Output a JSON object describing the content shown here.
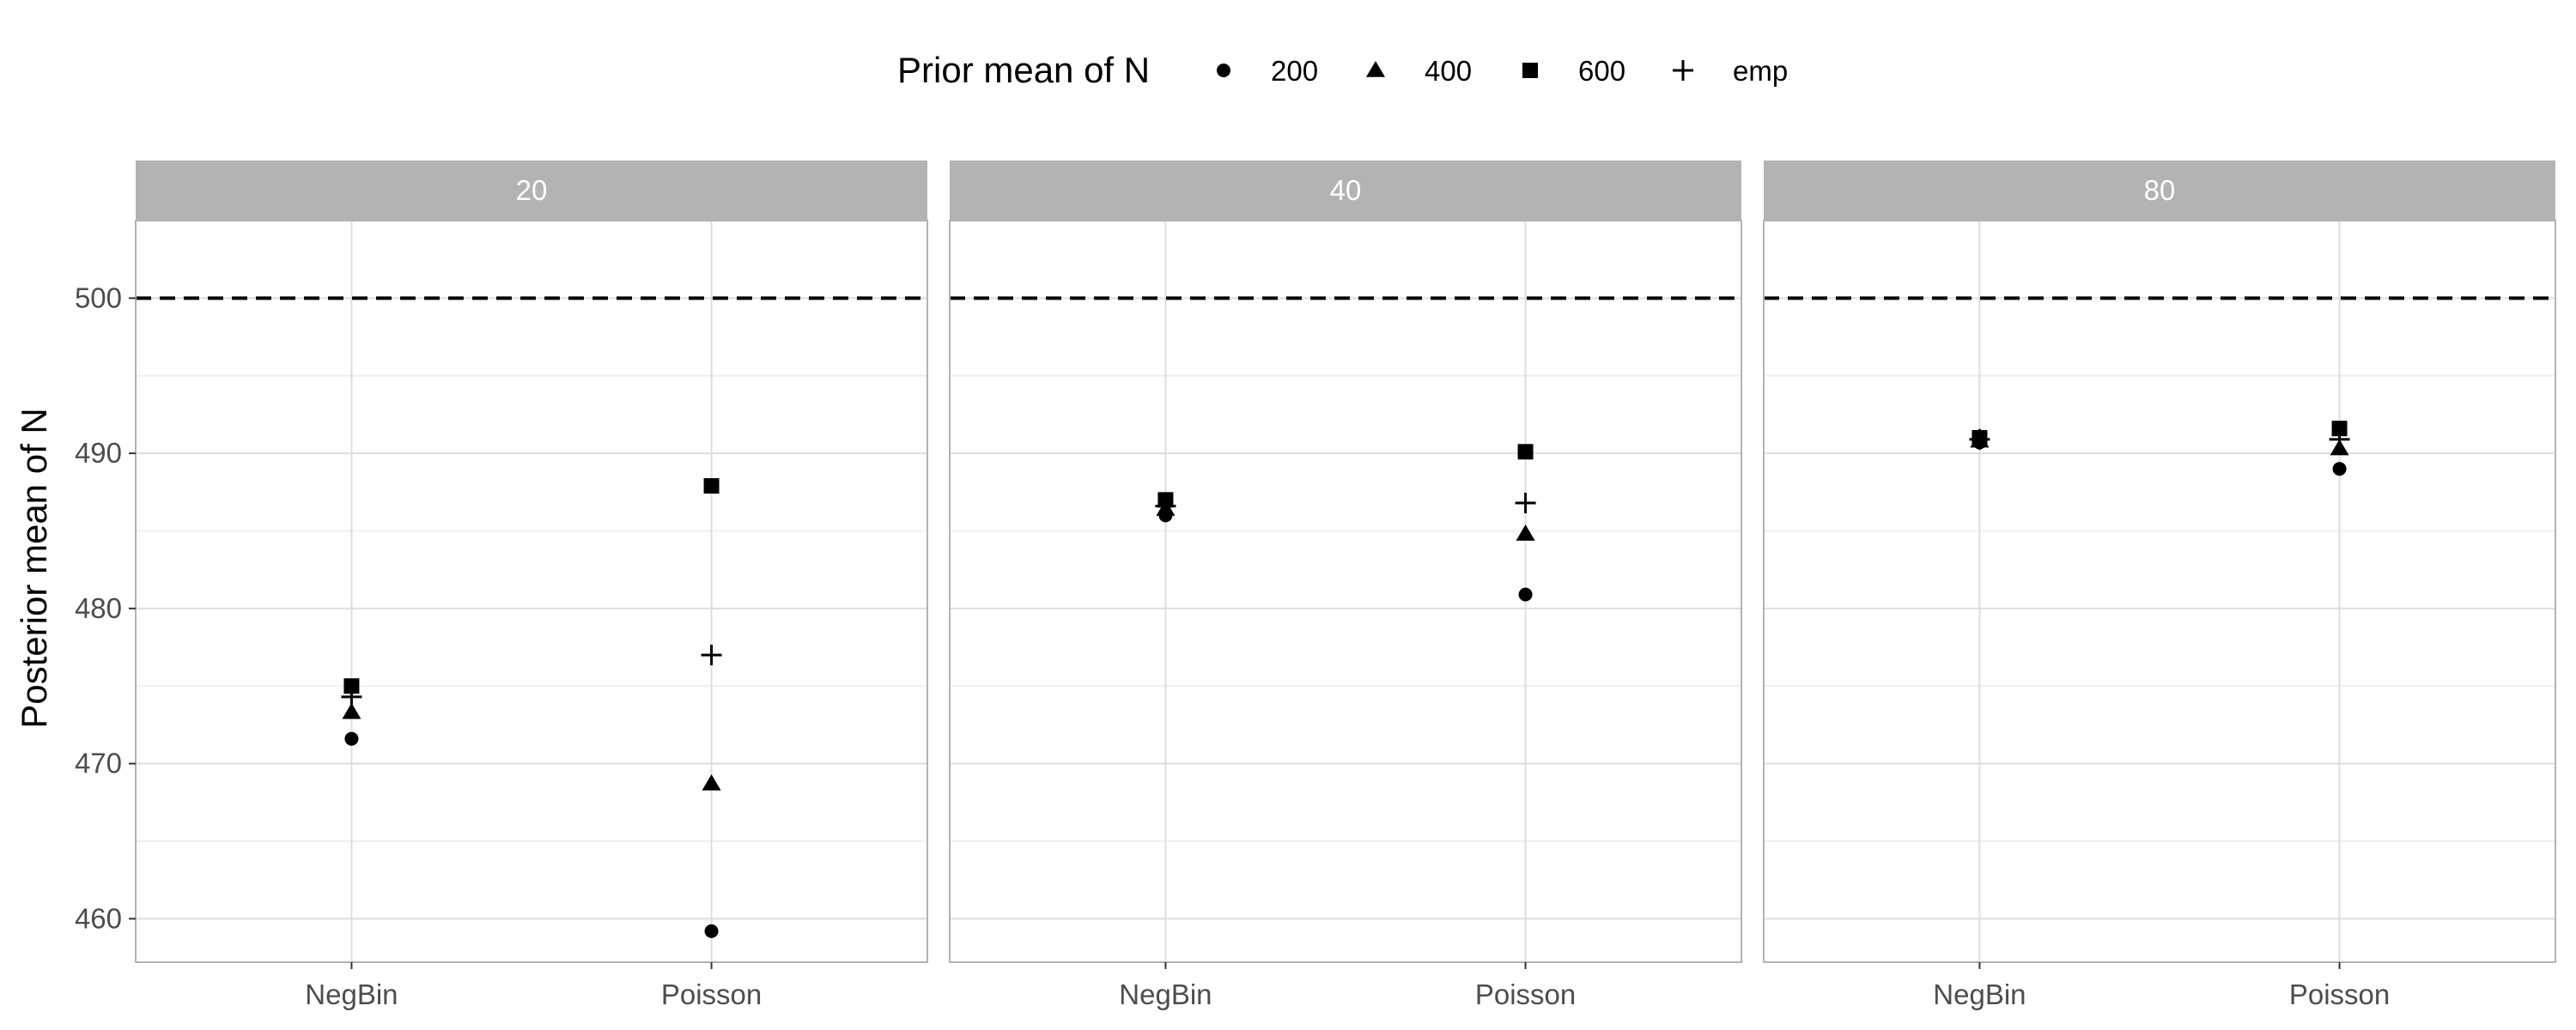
{
  "chart_data": {
    "type": "scatter",
    "ylabel": "Posterior mean of N",
    "ylim": [
      457.2,
      505.0
    ],
    "y_ticks": [
      460,
      470,
      480,
      490,
      500
    ],
    "x_categories": [
      "NegBin",
      "Poisson"
    ],
    "reference_line": {
      "y": 500,
      "style": "dashed"
    },
    "legend": {
      "title": "Prior mean of N",
      "position": "top",
      "entries": [
        {
          "label": "200",
          "shape": "circle"
        },
        {
          "label": "400",
          "shape": "triangle"
        },
        {
          "label": "600",
          "shape": "square"
        },
        {
          "label": "emp",
          "shape": "plus"
        }
      ]
    },
    "panels": [
      {
        "label": "20",
        "points": [
          {
            "x": "NegBin",
            "series": "200",
            "y": 471.6
          },
          {
            "x": "NegBin",
            "series": "400",
            "y": 473.3
          },
          {
            "x": "NegBin",
            "series": "600",
            "y": 475.0
          },
          {
            "x": "NegBin",
            "series": "emp",
            "y": 474.3
          },
          {
            "x": "Poisson",
            "series": "200",
            "y": 459.2
          },
          {
            "x": "Poisson",
            "series": "400",
            "y": 468.7
          },
          {
            "x": "Poisson",
            "series": "600",
            "y": 487.9
          },
          {
            "x": "Poisson",
            "series": "emp",
            "y": 477.0
          }
        ]
      },
      {
        "label": "40",
        "points": [
          {
            "x": "NegBin",
            "series": "200",
            "y": 486.0
          },
          {
            "x": "NegBin",
            "series": "400",
            "y": 486.4
          },
          {
            "x": "NegBin",
            "series": "600",
            "y": 487.0
          },
          {
            "x": "NegBin",
            "series": "emp",
            "y": 486.6
          },
          {
            "x": "Poisson",
            "series": "200",
            "y": 480.9
          },
          {
            "x": "Poisson",
            "series": "400",
            "y": 484.8
          },
          {
            "x": "Poisson",
            "series": "600",
            "y": 490.1
          },
          {
            "x": "Poisson",
            "series": "emp",
            "y": 486.8
          }
        ]
      },
      {
        "label": "80",
        "points": [
          {
            "x": "NegBin",
            "series": "200",
            "y": 490.7
          },
          {
            "x": "NegBin",
            "series": "400",
            "y": 490.8
          },
          {
            "x": "NegBin",
            "series": "600",
            "y": 491.0
          },
          {
            "x": "NegBin",
            "series": "emp",
            "y": 490.9
          },
          {
            "x": "Poisson",
            "series": "200",
            "y": 489.0
          },
          {
            "x": "Poisson",
            "series": "400",
            "y": 490.3
          },
          {
            "x": "Poisson",
            "series": "600",
            "y": 491.6
          },
          {
            "x": "Poisson",
            "series": "emp",
            "y": 490.9
          }
        ]
      }
    ],
    "colors": {
      "strip_background": "#b3b3b3",
      "strip_text": "#ffffff",
      "panel_border": "#b3b3b3",
      "grid_major": "#dedede",
      "grid_minor": "#efefef",
      "points": "#000000"
    }
  }
}
